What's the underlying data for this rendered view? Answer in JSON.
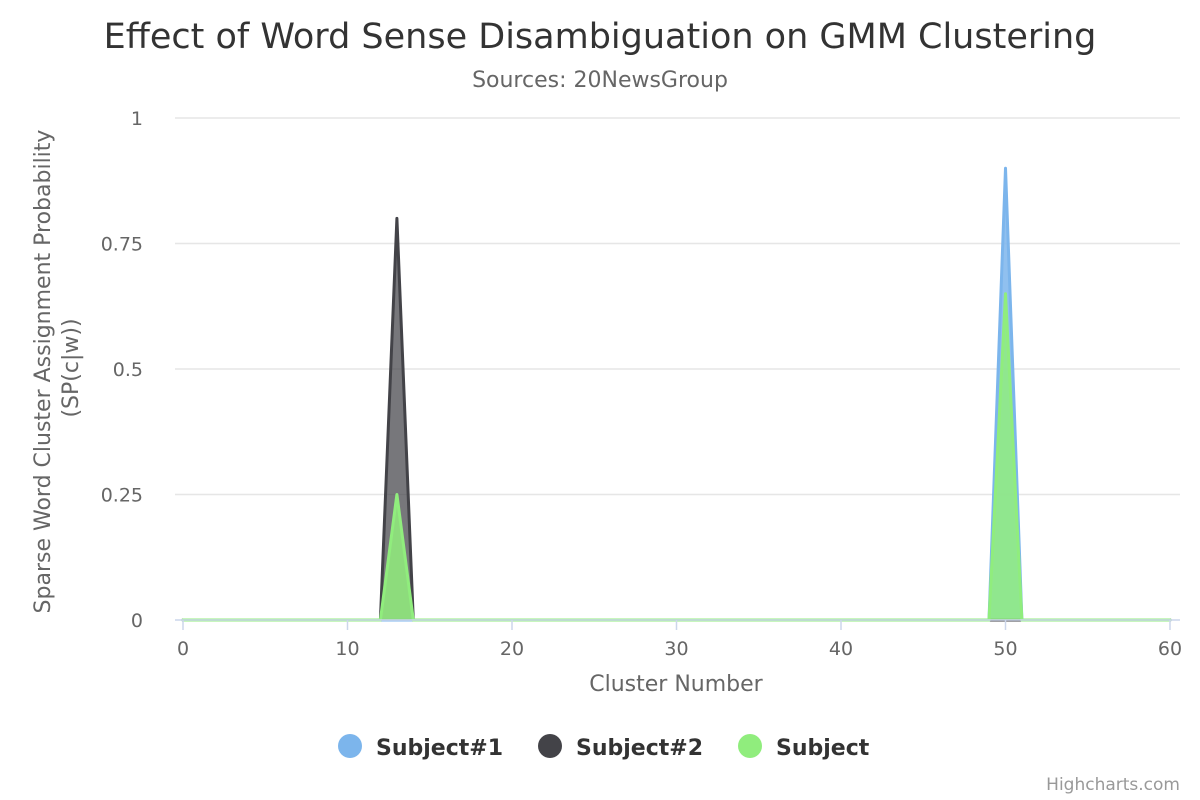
{
  "chart_data": {
    "type": "area",
    "title": "Effect of Word Sense Disambiguation on GMM Clustering",
    "subtitle": "Sources: 20NewsGroup",
    "xlabel": "Cluster Number",
    "ylabel": [
      "Sparse Word Cluster Assignment Probability",
      "(SP(c|w))"
    ],
    "xlim": [
      0,
      60
    ],
    "ylim": [
      0,
      1
    ],
    "x_ticks": [
      "0",
      "10",
      "20",
      "30",
      "40",
      "50",
      "60"
    ],
    "y_ticks": [
      "0",
      "0.25",
      "0.5",
      "0.75",
      "1"
    ],
    "grid": true,
    "legend_position": "bottom-center",
    "series": [
      {
        "name": "Subject#1",
        "color": "#7cb5ec",
        "points": [
          [
            0,
            0
          ],
          [
            49,
            0
          ],
          [
            50,
            0.9
          ],
          [
            51,
            0
          ],
          [
            60,
            0
          ]
        ]
      },
      {
        "name": "Subject#2",
        "color": "#434348",
        "points": [
          [
            0,
            0
          ],
          [
            12,
            0
          ],
          [
            13,
            0.8
          ],
          [
            14,
            0
          ],
          [
            60,
            0
          ]
        ]
      },
      {
        "name": "Subject",
        "color": "#90ed7d",
        "points": [
          [
            0,
            0
          ],
          [
            12,
            0
          ],
          [
            13,
            0.25
          ],
          [
            14,
            0
          ],
          [
            49,
            0
          ],
          [
            50,
            0.65
          ],
          [
            51,
            0
          ],
          [
            60,
            0
          ]
        ]
      }
    ],
    "credits": "Highcharts.com"
  }
}
